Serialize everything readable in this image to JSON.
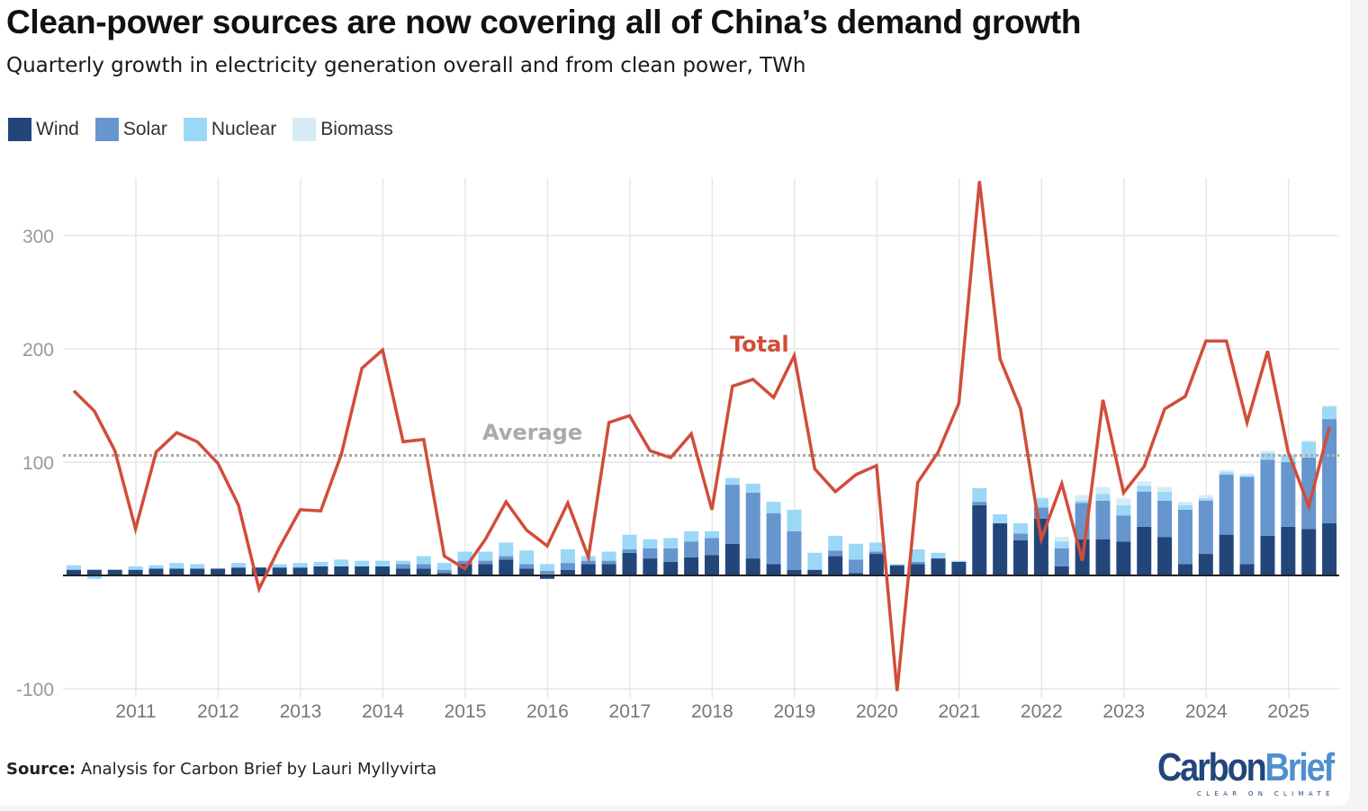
{
  "header": {
    "title": "Clean-power sources are now covering all of China’s demand growth",
    "subtitle": "Quarterly growth in electricity generation overall and from clean power, TWh"
  },
  "footer": {
    "source_label": "Source:",
    "source_text": " Analysis for Carbon Brief by Lauri Myllyvirta",
    "logo_part1": "Carbon",
    "logo_part2": "Brief",
    "logo_tagline": "CLEAR ON CLIMATE"
  },
  "colors": {
    "wind": "#23467a",
    "solar": "#6795cd",
    "nuclear": "#9bd8f7",
    "biomass": "#d6ebf4",
    "total": "#d14d3a",
    "average": "#aaaaaa",
    "grid": "#e6e6e6",
    "axis_text": "#999999",
    "year_text": "#777777"
  },
  "chart_data": {
    "type": "bar",
    "stacked": true,
    "title": "Clean-power sources are now covering all of China’s demand growth",
    "subtitle": "Quarterly growth in electricity generation overall and from clean power, TWh",
    "xlabel": "",
    "ylabel": "TWh",
    "ylim": [
      -100,
      350
    ],
    "yticks": [
      -100,
      100,
      200,
      300
    ],
    "ytick_labels": [
      "-100",
      "100",
      "200",
      "300"
    ],
    "grid": true,
    "legend_position": "top-left",
    "x_start": "2010 Q2",
    "x_tick_labels": [
      "2011",
      "2012",
      "2013",
      "2014",
      "2015",
      "2016",
      "2017",
      "2018",
      "2019",
      "2020",
      "2021",
      "2022",
      "2023",
      "2024",
      "2025"
    ],
    "x": [
      "2010Q2",
      "2010Q3",
      "2010Q4",
      "2011Q1",
      "2011Q2",
      "2011Q3",
      "2011Q4",
      "2012Q1",
      "2012Q2",
      "2012Q3",
      "2012Q4",
      "2013Q1",
      "2013Q2",
      "2013Q3",
      "2013Q4",
      "2014Q1",
      "2014Q2",
      "2014Q3",
      "2014Q4",
      "2015Q1",
      "2015Q2",
      "2015Q3",
      "2015Q4",
      "2016Q1",
      "2016Q2",
      "2016Q3",
      "2016Q4",
      "2017Q1",
      "2017Q2",
      "2017Q3",
      "2017Q4",
      "2018Q1",
      "2018Q2",
      "2018Q3",
      "2018Q4",
      "2019Q1",
      "2019Q2",
      "2019Q3",
      "2019Q4",
      "2020Q1",
      "2020Q2",
      "2020Q3",
      "2020Q4",
      "2021Q1",
      "2021Q2",
      "2021Q3",
      "2021Q4",
      "2022Q1",
      "2022Q2",
      "2022Q3",
      "2022Q4",
      "2023Q1",
      "2023Q2",
      "2023Q3",
      "2023Q4",
      "2024Q1",
      "2024Q2",
      "2024Q3",
      "2024Q4",
      "2025Q1",
      "2025Q2",
      "2025Q3"
    ],
    "series": [
      {
        "name": "Wind",
        "values": [
          5,
          5,
          5,
          5,
          6,
          6,
          6,
          6,
          7,
          7,
          7,
          7,
          8,
          8,
          8,
          8,
          6,
          6,
          2,
          10,
          10,
          14,
          6,
          -3,
          5,
          10,
          10,
          20,
          15,
          12,
          16,
          18,
          28,
          15,
          10,
          5,
          5,
          17,
          2,
          19,
          9,
          10,
          15,
          12,
          62,
          46,
          31,
          50,
          8,
          32,
          32,
          30,
          43,
          34,
          10,
          19,
          36,
          10,
          35,
          43,
          41,
          46
        ]
      },
      {
        "name": "Solar",
        "values": [
          0,
          0,
          0,
          0,
          0,
          0,
          0,
          0,
          0,
          0,
          0,
          0,
          0,
          0,
          0,
          0,
          4,
          4,
          3,
          3,
          3,
          3,
          4,
          4,
          6,
          3,
          3,
          3,
          9,
          12,
          14,
          15,
          52,
          58,
          45,
          34,
          0,
          5,
          12,
          2,
          0,
          2,
          0,
          0,
          3,
          0,
          6,
          10,
          16,
          32,
          34,
          23,
          31,
          32,
          48,
          47,
          53,
          77,
          67,
          57,
          63,
          92
        ]
      },
      {
        "name": "Nuclear",
        "values": [
          4,
          -3,
          0,
          3,
          3,
          5,
          4,
          0,
          4,
          0,
          3,
          4,
          4,
          6,
          5,
          5,
          3,
          7,
          6,
          8,
          8,
          12,
          12,
          6,
          12,
          4,
          8,
          13,
          8,
          9,
          9,
          6,
          6,
          8,
          10,
          19,
          15,
          13,
          14,
          8,
          1,
          11,
          5,
          1,
          12,
          8,
          9,
          8,
          6,
          2,
          6,
          9,
          5,
          8,
          4,
          2,
          2,
          1,
          6,
          6,
          14,
          11
        ]
      },
      {
        "name": "Biomass",
        "values": [
          0,
          0,
          0,
          0,
          0,
          0,
          0,
          0,
          0,
          0,
          0,
          0,
          0,
          0,
          0,
          0,
          0,
          0,
          0,
          0,
          0,
          0,
          0,
          0,
          0,
          0,
          0,
          0,
          0,
          0,
          0,
          0,
          0,
          0,
          0,
          0,
          0,
          0,
          0,
          0,
          0,
          0,
          0,
          0,
          0,
          0,
          0,
          1,
          4,
          5,
          6,
          6,
          4,
          4,
          3,
          3,
          2,
          2,
          2,
          1,
          1,
          1
        ]
      }
    ],
    "line_series": [
      {
        "name": "Total",
        "values": [
          163,
          145,
          110,
          41,
          109,
          126,
          118,
          99,
          62,
          -12,
          25,
          58,
          57,
          107,
          183,
          199,
          118,
          120,
          17,
          6,
          32,
          65,
          40,
          26,
          64,
          16,
          135,
          141,
          110,
          104,
          125,
          58,
          167,
          173,
          157,
          194,
          94,
          74,
          89,
          97,
          -102,
          82,
          109,
          152,
          348,
          191,
          147,
          32,
          81,
          13,
          155,
          73,
          96,
          147,
          158,
          207,
          207,
          135,
          198,
          109,
          61,
          131
        ]
      }
    ],
    "annotations": [
      {
        "text": "Total",
        "target": "Total line"
      },
      {
        "text": "Average",
        "value": 106
      }
    ],
    "average_line": 106
  }
}
